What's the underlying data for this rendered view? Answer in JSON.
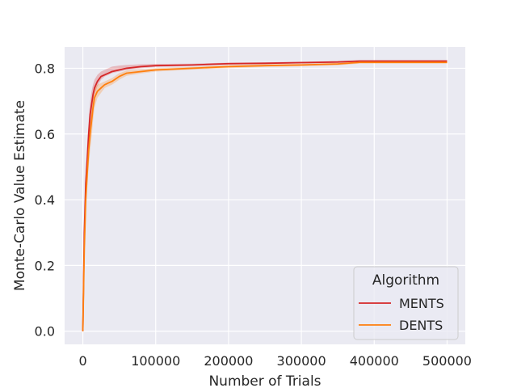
{
  "chart_data": {
    "type": "line",
    "title": "",
    "xlabel": "Number of Trials",
    "ylabel": "Monte-Carlo Value Estimate",
    "xlim": [
      -25000,
      525000
    ],
    "ylim": [
      -0.04,
      0.865
    ],
    "xticks": [
      0,
      100000,
      200000,
      300000,
      400000,
      500000
    ],
    "xtick_labels": [
      "0",
      "100000",
      "200000",
      "300000",
      "400000",
      "500000"
    ],
    "yticks": [
      0.0,
      0.2,
      0.4,
      0.6,
      0.8
    ],
    "ytick_labels": [
      "0.0",
      "0.2",
      "0.4",
      "0.6",
      "0.8"
    ],
    "grid": true,
    "legend": {
      "title": "Algorithm",
      "placement": "lower-right"
    },
    "series": [
      {
        "name": "MENTS",
        "color": "#d62728",
        "x": [
          0,
          2000,
          4000,
          6000,
          8000,
          10000,
          12000,
          14000,
          16000,
          20000,
          25000,
          30000,
          35000,
          40000,
          50000,
          60000,
          80000,
          100000,
          150000,
          200000,
          250000,
          300000,
          350000,
          380000,
          400000,
          450000,
          500000
        ],
        "y": [
          0.0,
          0.3,
          0.45,
          0.52,
          0.6,
          0.66,
          0.69,
          0.72,
          0.74,
          0.76,
          0.775,
          0.78,
          0.785,
          0.79,
          0.795,
          0.8,
          0.805,
          0.808,
          0.81,
          0.814,
          0.815,
          0.817,
          0.819,
          0.822,
          0.822,
          0.822,
          0.822
        ],
        "lower": [
          0.0,
          0.26,
          0.41,
          0.48,
          0.56,
          0.62,
          0.65,
          0.69,
          0.72,
          0.745,
          0.765,
          0.775,
          0.78,
          0.785,
          0.79,
          0.795,
          0.8,
          0.804,
          0.807,
          0.811,
          0.813,
          0.815,
          0.817,
          0.82,
          0.82,
          0.82,
          0.82
        ],
        "upper": [
          0.0,
          0.34,
          0.49,
          0.57,
          0.64,
          0.7,
          0.73,
          0.75,
          0.765,
          0.78,
          0.79,
          0.795,
          0.8,
          0.805,
          0.808,
          0.81,
          0.812,
          0.813,
          0.814,
          0.817,
          0.818,
          0.82,
          0.822,
          0.824,
          0.824,
          0.824,
          0.824
        ]
      },
      {
        "name": "DENTS",
        "color": "#ff7f0e",
        "x": [
          0,
          2000,
          4000,
          6000,
          8000,
          10000,
          12000,
          14000,
          16000,
          20000,
          25000,
          30000,
          35000,
          40000,
          50000,
          60000,
          80000,
          100000,
          150000,
          200000,
          250000,
          300000,
          350000,
          380000,
          400000,
          450000,
          500000
        ],
        "y": [
          0.0,
          0.25,
          0.4,
          0.48,
          0.55,
          0.6,
          0.64,
          0.68,
          0.71,
          0.73,
          0.74,
          0.75,
          0.755,
          0.76,
          0.775,
          0.785,
          0.79,
          0.795,
          0.8,
          0.805,
          0.808,
          0.81,
          0.813,
          0.818,
          0.818,
          0.818,
          0.818
        ],
        "lower": [
          0.0,
          0.2,
          0.35,
          0.43,
          0.5,
          0.55,
          0.59,
          0.64,
          0.68,
          0.71,
          0.725,
          0.74,
          0.745,
          0.75,
          0.765,
          0.777,
          0.784,
          0.79,
          0.796,
          0.8,
          0.804,
          0.806,
          0.809,
          0.814,
          0.814,
          0.814,
          0.814
        ],
        "upper": [
          0.0,
          0.3,
          0.45,
          0.53,
          0.6,
          0.65,
          0.69,
          0.72,
          0.74,
          0.75,
          0.755,
          0.76,
          0.765,
          0.77,
          0.785,
          0.793,
          0.797,
          0.8,
          0.804,
          0.81,
          0.812,
          0.814,
          0.817,
          0.822,
          0.822,
          0.822,
          0.822
        ]
      }
    ]
  }
}
